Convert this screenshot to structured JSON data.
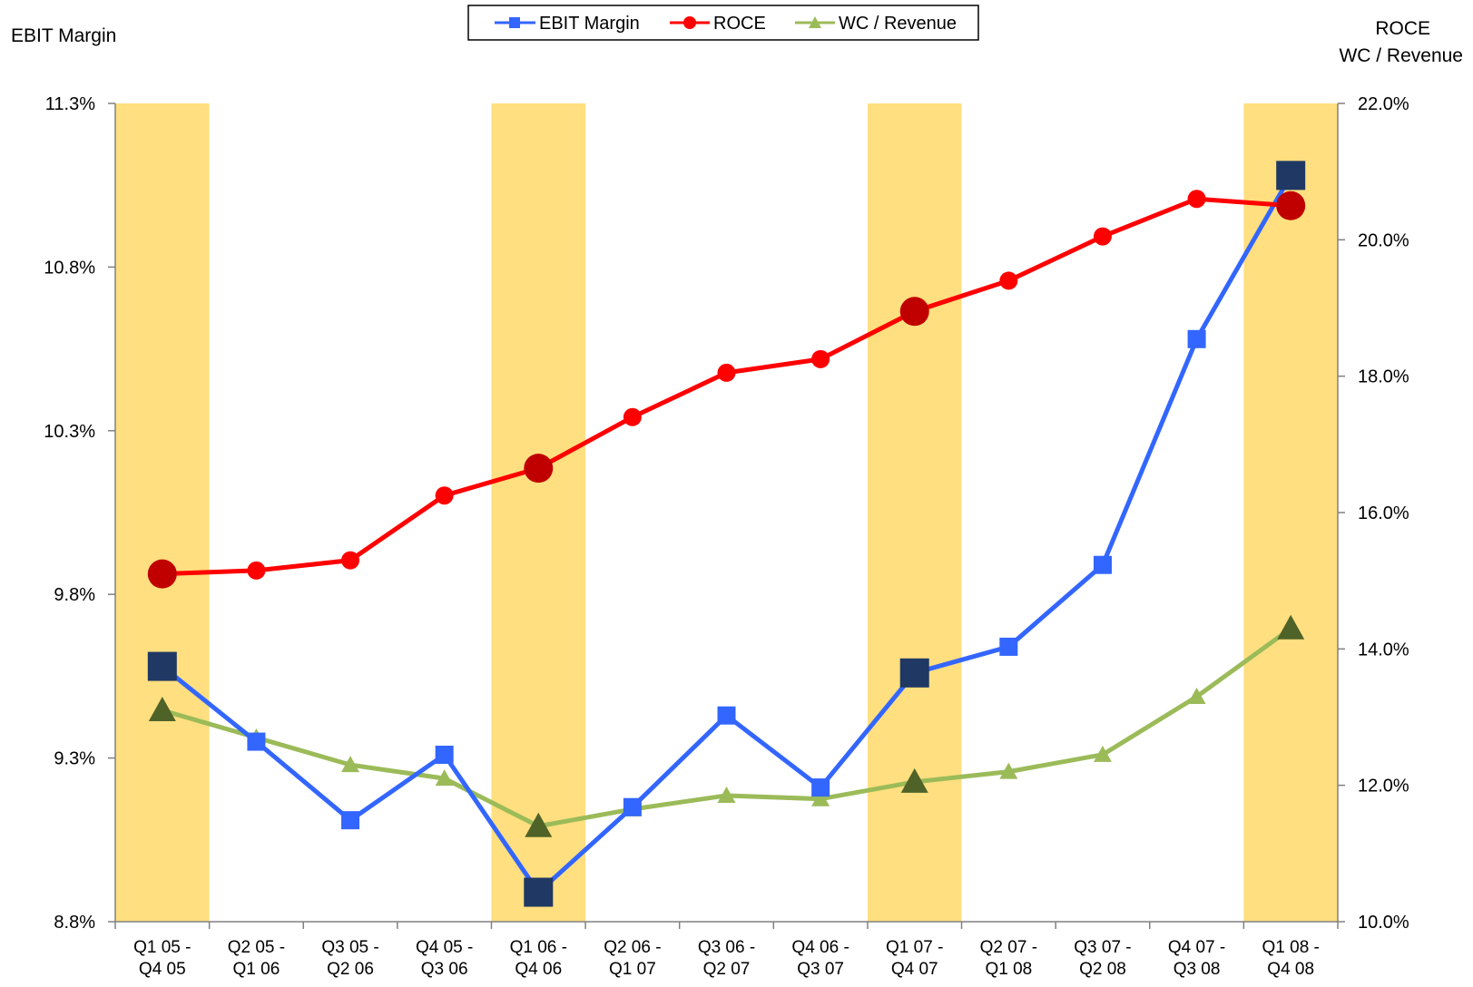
{
  "chart_data": {
    "type": "line",
    "left_axis": {
      "label": "EBIT Margin",
      "min": 8.8,
      "max": 11.3,
      "ticks": [
        "8.8%",
        "9.3%",
        "9.8%",
        "10.3%",
        "10.8%",
        "11.3%"
      ],
      "tick_values": [
        8.8,
        9.3,
        9.8,
        10.3,
        10.8,
        11.3
      ]
    },
    "right_axis": {
      "label_lines": [
        "ROCE",
        "WC / Revenue"
      ],
      "min": 10.0,
      "max": 22.0,
      "ticks": [
        "10.0%",
        "12.0%",
        "14.0%",
        "16.0%",
        "18.0%",
        "20.0%",
        "22.0%"
      ],
      "tick_values": [
        10,
        12,
        14,
        16,
        18,
        20,
        22
      ]
    },
    "categories": [
      [
        "Q1 05 -",
        "Q4 05"
      ],
      [
        "Q2 05 -",
        "Q1 06"
      ],
      [
        "Q3 05 -",
        "Q2 06"
      ],
      [
        "Q4 05 -",
        "Q3 06"
      ],
      [
        "Q1 06 -",
        "Q4 06"
      ],
      [
        "Q2 06 -",
        "Q1 07"
      ],
      [
        "Q3 06 -",
        "Q2 07"
      ],
      [
        "Q4 06 -",
        "Q3 07"
      ],
      [
        "Q1 07 -",
        "Q4 07"
      ],
      [
        "Q2 07 -",
        "Q1 08"
      ],
      [
        "Q3 07 -",
        "Q2 08"
      ],
      [
        "Q4 07 -",
        "Q3 08"
      ],
      [
        "Q1 08 -",
        "Q4 08"
      ]
    ],
    "highlighted_categories": [
      0,
      4,
      8,
      12
    ],
    "series": [
      {
        "name": "EBIT Margin",
        "axis": "left",
        "color": "#3366FF",
        "highlight_color": "#1F3864",
        "marker": "square",
        "values": [
          9.58,
          9.35,
          9.11,
          9.31,
          8.89,
          9.15,
          9.43,
          9.21,
          9.56,
          9.64,
          9.89,
          10.58,
          11.08
        ]
      },
      {
        "name": "ROCE",
        "axis": "right",
        "color": "#FF0000",
        "highlight_color": "#C00000",
        "marker": "circle",
        "values": [
          15.1,
          15.15,
          15.3,
          16.25,
          16.65,
          17.4,
          18.05,
          18.25,
          18.95,
          19.4,
          20.05,
          20.6,
          20.5
        ]
      },
      {
        "name": "WC / Revenue",
        "axis": "right",
        "color": "#9BBB59",
        "highlight_color": "#4F6228",
        "marker": "triangle",
        "values": [
          13.1,
          12.7,
          12.3,
          12.1,
          11.4,
          11.65,
          11.85,
          11.8,
          12.05,
          12.2,
          12.45,
          13.3,
          14.3
        ]
      }
    ],
    "band_color": "#FFDF7F",
    "legend_position": "top-center",
    "grid": false
  }
}
